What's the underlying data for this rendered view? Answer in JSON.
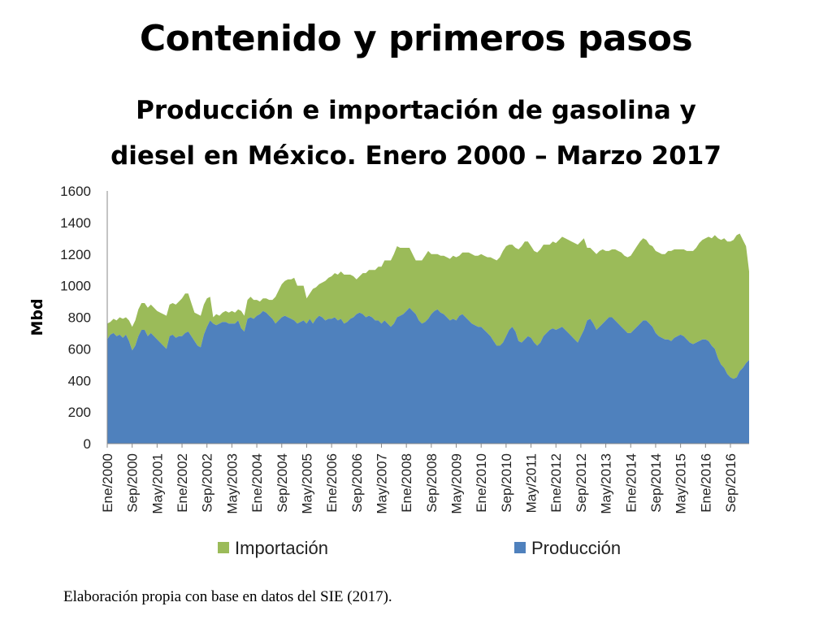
{
  "slide": {
    "title": "Contenido y primeros pasos",
    "source": "Elaboración propia con base en datos del SIE (2017)."
  },
  "chart_data": {
    "type": "area",
    "stacked": true,
    "title": "Producción e importación de gasolina y diesel en México. Enero 2000 – Marzo 2017",
    "title_lines": [
      "Producción e importación de gasolina y",
      "diesel en México. Enero 2000 – Marzo 2017"
    ],
    "ylabel": "Mbd",
    "xlabel": "",
    "ylim": [
      0,
      1600
    ],
    "yticks": [
      0,
      200,
      400,
      600,
      800,
      1000,
      1200,
      1400,
      1600
    ],
    "grid": false,
    "legend_position": "bottom",
    "x_start": "Ene/2000",
    "x_end": "Mar/2017",
    "xtick_labels": [
      "Ene/2000",
      "Sep/2000",
      "May/2001",
      "Ene/2002",
      "Sep/2002",
      "May/2003",
      "Ene/2004",
      "Sep/2004",
      "May/2005",
      "Ene/2006",
      "Sep/2006",
      "May/2007",
      "Ene/2008",
      "Sep/2008",
      "May/2009",
      "Ene/2010",
      "Sep/2010",
      "May/2011",
      "Ene/2012",
      "Sep/2012",
      "May/2013",
      "Ene/2014",
      "Sep/2014",
      "May/2015",
      "Ene/2016",
      "Sep/2016"
    ],
    "series": [
      {
        "name": "Producción",
        "color": "#4f81bd",
        "values_by_year": [
          [
            660,
            690,
            700,
            680,
            690,
            670,
            690,
            650,
            590,
            620,
            680,
            720
          ],
          [
            720,
            680,
            700,
            680,
            660,
            640,
            620,
            600,
            680,
            690,
            670,
            680
          ],
          [
            680,
            700,
            710,
            680,
            650,
            620,
            610,
            690,
            740,
            780,
            760,
            750
          ],
          [
            760,
            770,
            770,
            760,
            760,
            760,
            780,
            730,
            710,
            790,
            800,
            790
          ],
          [
            810,
            820,
            840,
            830,
            810,
            790,
            760,
            780,
            800,
            810,
            800,
            790
          ],
          [
            780,
            760,
            770,
            780,
            760,
            790,
            760,
            790,
            810,
            800,
            780,
            790
          ],
          [
            790,
            800,
            780,
            790,
            760,
            770,
            790,
            800,
            820,
            830,
            820,
            800
          ],
          [
            810,
            800,
            780,
            780,
            760,
            780,
            760,
            740,
            760,
            800,
            810,
            820
          ],
          [
            840,
            860,
            840,
            820,
            780,
            760,
            770,
            790,
            820,
            840,
            850,
            830
          ],
          [
            820,
            800,
            780,
            790,
            780,
            810,
            820,
            800,
            780,
            760,
            750,
            740
          ],
          [
            740,
            720,
            700,
            680,
            650,
            620,
            620,
            640,
            680,
            720,
            740,
            710
          ],
          [
            650,
            640,
            660,
            680,
            670,
            640,
            620,
            640,
            680,
            700,
            720,
            730
          ],
          [
            720,
            730,
            740,
            720,
            700,
            680,
            660,
            640,
            680,
            720,
            780,
            790
          ],
          [
            760,
            720,
            740,
            760,
            780,
            800,
            800,
            780,
            760,
            740,
            720,
            700
          ],
          [
            700,
            720,
            740,
            760,
            780,
            780,
            760,
            740,
            700,
            680,
            670,
            660
          ],
          [
            660,
            650,
            670,
            680,
            690,
            680,
            660,
            640,
            630,
            640,
            650,
            660
          ],
          [
            660,
            650,
            620,
            600,
            540,
            500,
            480,
            440,
            420,
            410,
            420,
            460
          ],
          [
            480,
            510,
            530
          ]
        ]
      },
      {
        "name": "Importación",
        "color": "#9bbb59",
        "values_by_year": [
          [
            100,
            80,
            90,
            100,
            110,
            120,
            110,
            130,
            150,
            160,
            170,
            170
          ],
          [
            170,
            180,
            180,
            180,
            180,
            190,
            200,
            210,
            200,
            200,
            210,
            220
          ],
          [
            240,
            250,
            240,
            210,
            180,
            200,
            200,
            190,
            180,
            150,
            40,
            70
          ],
          [
            50,
            60,
            70,
            70,
            80,
            70,
            70,
            110,
            100,
            120,
            130,
            120
          ],
          [
            100,
            80,
            80,
            90,
            100,
            120,
            170,
            190,
            210,
            220,
            240,
            250
          ],
          [
            270,
            240,
            230,
            220,
            160,
            160,
            220,
            200,
            200,
            220,
            250,
            260
          ],
          [
            270,
            280,
            290,
            300,
            310,
            300,
            280,
            260,
            220,
            230,
            260,
            280
          ],
          [
            290,
            300,
            320,
            340,
            360,
            380,
            400,
            420,
            440,
            450,
            430,
            420
          ],
          [
            400,
            380,
            360,
            340,
            380,
            400,
            420,
            430,
            380,
            360,
            350,
            360
          ],
          [
            370,
            380,
            390,
            400,
            400,
            380,
            390,
            410,
            430,
            440,
            440,
            450
          ],
          [
            460,
            470,
            480,
            500,
            520,
            540,
            560,
            580,
            570,
            540,
            520,
            530
          ],
          [
            580,
            610,
            620,
            600,
            580,
            580,
            590,
            590,
            580,
            560,
            540,
            550
          ],
          [
            550,
            560,
            570,
            580,
            590,
            600,
            610,
            620,
            600,
            580,
            460,
            450
          ],
          [
            460,
            480,
            480,
            470,
            440,
            420,
            430,
            450,
            460,
            470,
            470,
            480
          ],
          [
            490,
            500,
            510,
            520,
            520,
            510,
            500,
            510,
            520,
            530,
            530,
            540
          ],
          [
            560,
            570,
            560,
            550,
            540,
            550,
            560,
            580,
            590,
            600,
            620,
            630
          ],
          [
            640,
            660,
            680,
            720,
            760,
            790,
            820,
            840,
            860,
            880,
            900,
            870
          ],
          [
            810,
            740,
            560
          ]
        ]
      }
    ]
  }
}
